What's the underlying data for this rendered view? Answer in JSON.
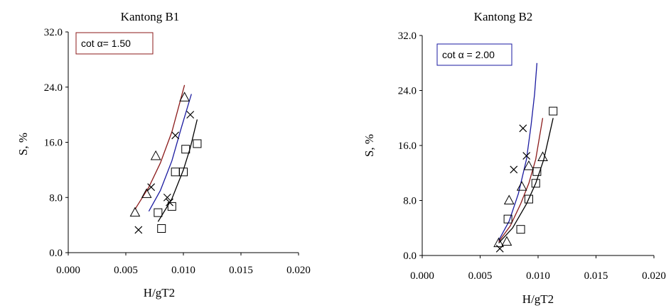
{
  "chart_data": [
    {
      "type": "scatter",
      "title": "Kantong B1",
      "xlabel": "H/gT2",
      "ylabel": "S, %",
      "xlim": [
        0.0,
        0.02
      ],
      "ylim": [
        0.0,
        32.0
      ],
      "x_ticks": [
        "0.000",
        "0.005",
        "0.010",
        "0.015",
        "0.020"
      ],
      "y_ticks": [
        "0.0",
        "8.0",
        "16.0",
        "24.0",
        "32.0"
      ],
      "annotation": {
        "text": "cot α= 1.50",
        "border_color": "#8b1a1a"
      },
      "series": [
        {
          "marker": "triangle",
          "points": [
            [
              0.0058,
              5.8
            ],
            [
              0.0068,
              8.5
            ],
            [
              0.0076,
              14.0
            ],
            [
              0.0101,
              22.5
            ]
          ]
        },
        {
          "marker": "cross",
          "points": [
            [
              0.0061,
              3.3
            ],
            [
              0.0072,
              9.5
            ],
            [
              0.0086,
              8.0
            ],
            [
              0.0088,
              7.3
            ],
            [
              0.0093,
              17.0
            ],
            [
              0.0106,
              20.0
            ]
          ]
        },
        {
          "marker": "square",
          "points": [
            [
              0.0078,
              5.8
            ],
            [
              0.0081,
              3.5
            ],
            [
              0.009,
              6.7
            ],
            [
              0.0093,
              11.7
            ],
            [
              0.01,
              11.7
            ],
            [
              0.0102,
              15.0
            ],
            [
              0.0112,
              15.8
            ]
          ]
        }
      ],
      "curves": [
        {
          "color": "#8b1a1a",
          "points": [
            [
              0.0058,
              6.3
            ],
            [
              0.007,
              9.5
            ],
            [
              0.008,
              13.0
            ],
            [
              0.009,
              17.5
            ],
            [
              0.0101,
              24.3
            ]
          ]
        },
        {
          "color": "#1a1aa0",
          "points": [
            [
              0.007,
              6.0
            ],
            [
              0.008,
              9.0
            ],
            [
              0.009,
              13.3
            ],
            [
              0.0098,
              18.0
            ],
            [
              0.0107,
              23.0
            ]
          ]
        },
        {
          "color": "#000000",
          "points": [
            [
              0.0078,
              4.5
            ],
            [
              0.009,
              7.8
            ],
            [
              0.01,
              12.0
            ],
            [
              0.0106,
              15.2
            ],
            [
              0.0112,
              19.3
            ]
          ]
        }
      ]
    },
    {
      "type": "scatter",
      "title": "Kantong B2",
      "xlabel": "H/gT2",
      "ylabel": "S, %",
      "xlim": [
        0.0,
        0.02
      ],
      "ylim": [
        0.0,
        32.0
      ],
      "x_ticks": [
        "0.000",
        "0.005",
        "0.010",
        "0.015",
        "0.020"
      ],
      "y_ticks": [
        "0.0",
        "8.0",
        "16.0",
        "24.0",
        "32.0"
      ],
      "annotation": {
        "text": "cot α = 2.00",
        "border_color": "#1a1aa0"
      },
      "series": [
        {
          "marker": "triangle",
          "points": [
            [
              0.0066,
              1.8
            ],
            [
              0.0073,
              2.0
            ],
            [
              0.0075,
              8.0
            ],
            [
              0.0086,
              10.0
            ],
            [
              0.0092,
              13.0
            ],
            [
              0.0104,
              14.3
            ]
          ]
        },
        {
          "marker": "cross",
          "points": [
            [
              0.0067,
              1.0
            ],
            [
              0.0079,
              12.5
            ],
            [
              0.0087,
              18.5
            ],
            [
              0.009,
              14.5
            ]
          ]
        },
        {
          "marker": "square",
          "points": [
            [
              0.0074,
              5.3
            ],
            [
              0.0085,
              3.8
            ],
            [
              0.0092,
              8.2
            ],
            [
              0.0098,
              10.5
            ],
            [
              0.0099,
              12.2
            ],
            [
              0.0113,
              21.0
            ]
          ]
        }
      ],
      "curves": [
        {
          "color": "#1a1aa0",
          "points": [
            [
              0.0066,
              2.2
            ],
            [
              0.0075,
              5.0
            ],
            [
              0.0083,
              9.0
            ],
            [
              0.009,
              14.0
            ],
            [
              0.0094,
              19.0
            ],
            [
              0.0097,
              23.5
            ],
            [
              0.0099,
              28.0
            ]
          ]
        },
        {
          "color": "#8b1a1a",
          "points": [
            [
              0.0066,
              2.0
            ],
            [
              0.0076,
              4.3
            ],
            [
              0.0085,
              7.5
            ],
            [
              0.0092,
              10.5
            ],
            [
              0.0098,
              14.0
            ],
            [
              0.0104,
              20.0
            ]
          ]
        },
        {
          "color": "#000000",
          "points": [
            [
              0.0066,
              1.8
            ],
            [
              0.0078,
              4.0
            ],
            [
              0.009,
              7.5
            ],
            [
              0.0098,
              10.5
            ],
            [
              0.0105,
              14.0
            ],
            [
              0.0113,
              20.0
            ]
          ]
        }
      ]
    }
  ]
}
